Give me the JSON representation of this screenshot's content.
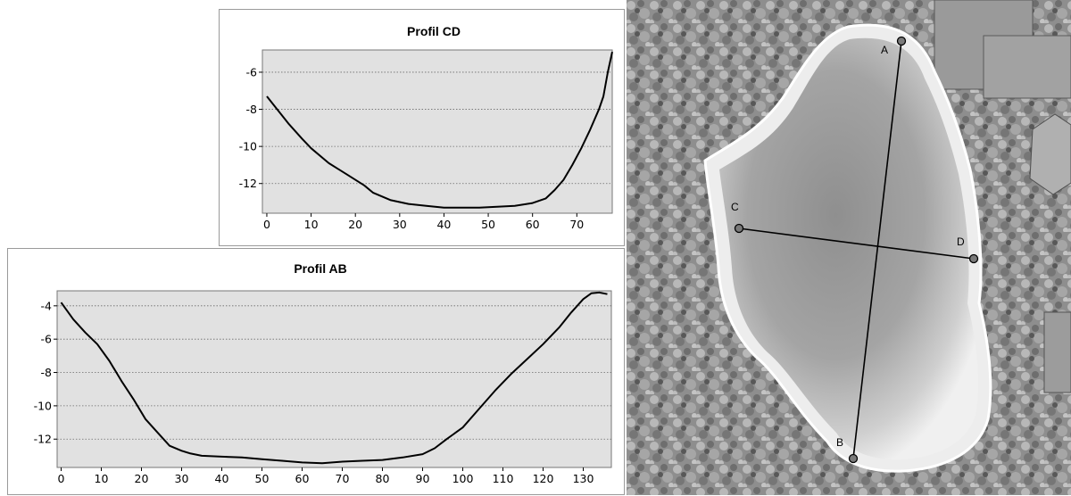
{
  "chart_data": [
    {
      "type": "line",
      "title": "Profil CD",
      "xlim": [
        -1,
        78
      ],
      "ylim": [
        -13.6,
        -4.8
      ],
      "xticks": [
        0,
        10,
        20,
        30,
        40,
        50,
        60,
        70
      ],
      "yticks": [
        -6,
        -8,
        -10,
        -12
      ],
      "grid": "horizontal dotted",
      "plot_color": "#e1e1e1",
      "series": [
        {
          "x": [
            0,
            2,
            5,
            8,
            10,
            14,
            18,
            22,
            24,
            28,
            32,
            36,
            40,
            44,
            48,
            52,
            56,
            60,
            63,
            65,
            67,
            69,
            71,
            73,
            75,
            76,
            77,
            78
          ],
          "y": [
            -7.3,
            -7.9,
            -8.8,
            -9.6,
            -10.1,
            -10.9,
            -11.5,
            -12.1,
            -12.5,
            -12.9,
            -13.1,
            -13.2,
            -13.3,
            -13.3,
            -13.3,
            -13.25,
            -13.2,
            -13.05,
            -12.8,
            -12.35,
            -11.8,
            -11.0,
            -10.1,
            -9.1,
            -8.0,
            -7.3,
            -6.0,
            -4.9
          ]
        }
      ]
    },
    {
      "type": "line",
      "title": "Profil AB",
      "xlim": [
        -1,
        137
      ],
      "ylim": [
        -13.7,
        -3.1
      ],
      "xticks": [
        0,
        10,
        20,
        30,
        40,
        50,
        60,
        70,
        80,
        90,
        100,
        110,
        120,
        130
      ],
      "yticks": [
        -4,
        -6,
        -8,
        -10,
        -12
      ],
      "grid": "horizontal dotted",
      "plot_color": "#e1e1e1",
      "series": [
        {
          "x": [
            0,
            3,
            6,
            9,
            12,
            15,
            18,
            21,
            24,
            27,
            30,
            32,
            35,
            40,
            45,
            50,
            55,
            60,
            65,
            70,
            75,
            80,
            85,
            90,
            93,
            96,
            100,
            104,
            108,
            112,
            116,
            120,
            124,
            127,
            130,
            132,
            134,
            136
          ],
          "y": [
            -3.8,
            -4.8,
            -5.6,
            -6.3,
            -7.3,
            -8.5,
            -9.6,
            -10.8,
            -11.6,
            -12.4,
            -12.7,
            -12.85,
            -13.0,
            -13.05,
            -13.1,
            -13.2,
            -13.3,
            -13.4,
            -13.45,
            -13.35,
            -13.3,
            -13.25,
            -13.1,
            -12.9,
            -12.55,
            -12.0,
            -11.3,
            -10.2,
            -9.1,
            -8.1,
            -7.2,
            -6.3,
            -5.3,
            -4.4,
            -3.6,
            -3.25,
            -3.2,
            -3.3
          ]
        }
      ]
    }
  ],
  "map": {
    "point_labels": {
      "a": "A",
      "b": "B",
      "c": "C",
      "d": "D"
    }
  }
}
